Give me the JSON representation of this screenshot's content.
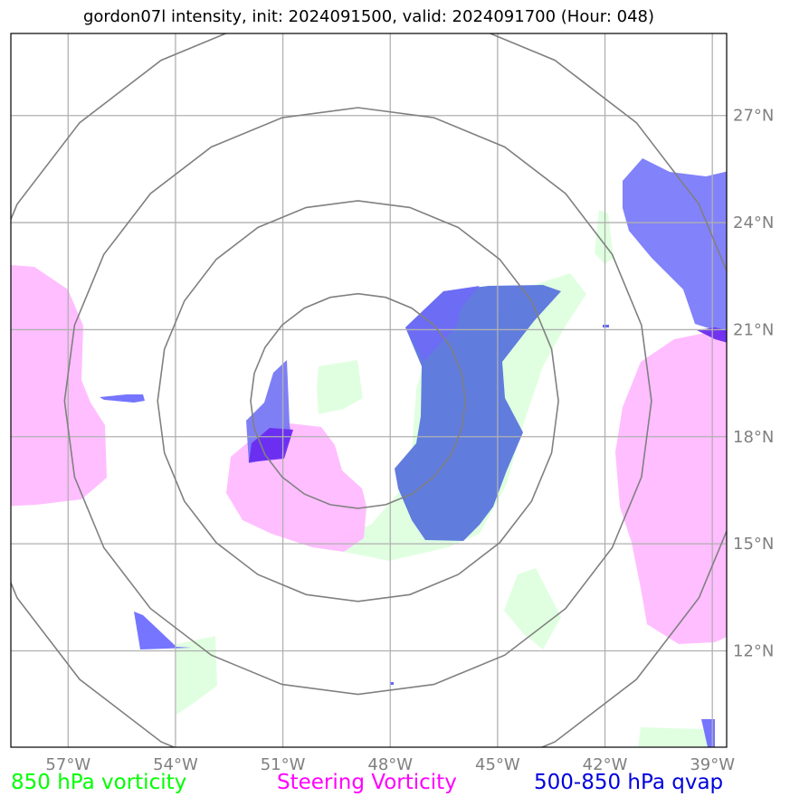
{
  "title": "gordon07l intensity, init: 2024091500, valid: 2024091700 (Hour: 048)",
  "map": {
    "lon_range": [
      -58.6,
      -38.6
    ],
    "lat_range": [
      9.3,
      29.3
    ],
    "lon_ticks": [
      {
        "value": -57,
        "label": "57°W"
      },
      {
        "value": -54,
        "label": "54°W"
      },
      {
        "value": -51,
        "label": "51°W"
      },
      {
        "value": -48,
        "label": "48°W"
      },
      {
        "value": -45,
        "label": "45°W"
      },
      {
        "value": -42,
        "label": "42°W"
      },
      {
        "value": -39,
        "label": "39°W"
      }
    ],
    "lat_ticks": [
      {
        "value": 12,
        "label": "12°N"
      },
      {
        "value": 15,
        "label": "15°N"
      },
      {
        "value": 18,
        "label": "18°N"
      },
      {
        "value": 21,
        "label": "21°N"
      },
      {
        "value": 24,
        "label": "24°N"
      },
      {
        "value": 27,
        "label": "27°N"
      }
    ],
    "range_rings": {
      "center": [
        -48.9,
        19.0
      ],
      "radii_deg": [
        3.0,
        5.6,
        8.2,
        11.0
      ]
    },
    "colors": {
      "gridline": "#b0b0b0",
      "ring": "#808080",
      "vorticity_850": "#ddffdd",
      "steering_vorticity": "#ffbbff",
      "qvap": "#6666ff",
      "qvap_overlap": "#5c78dd"
    }
  },
  "legend": {
    "vorticity_850": {
      "label": "850 hPa vorticity",
      "color": "#00ff00"
    },
    "steering_vorticity": {
      "label": "Steering Vorticity",
      "color": "#ff00ff"
    },
    "qvap": {
      "label": "500-850 hPa qvap",
      "color": "#0000dd"
    }
  }
}
